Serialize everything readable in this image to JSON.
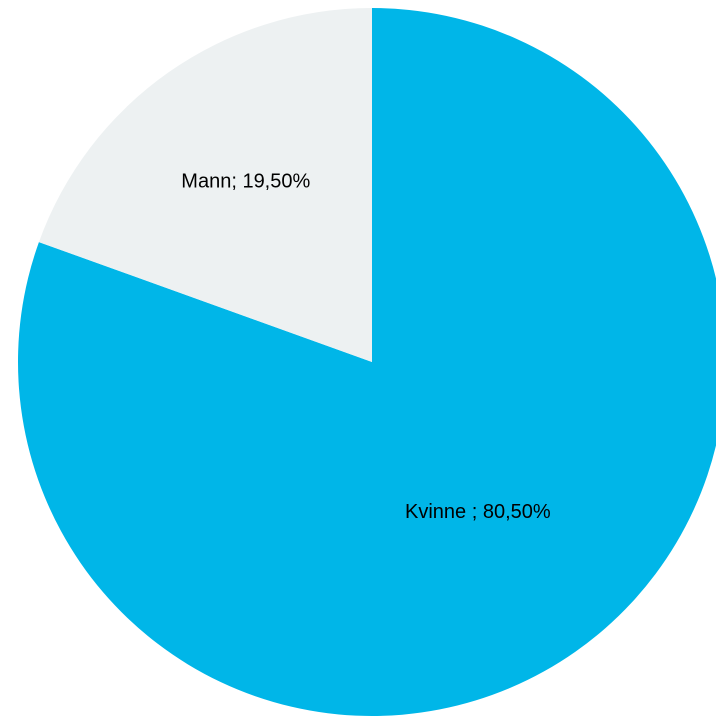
{
  "chart_data": {
    "type": "pie",
    "slices": [
      {
        "name": "Kvinne",
        "value": 80.5,
        "label": "Kvinne ; 80,50%",
        "color": "#00B6E8"
      },
      {
        "name": "Mann",
        "value": 19.5,
        "label": "Mann; 19,50%",
        "color": "#EDF1F2"
      }
    ],
    "start": "12 o'clock",
    "direction": "clockwise",
    "legend": "none"
  }
}
